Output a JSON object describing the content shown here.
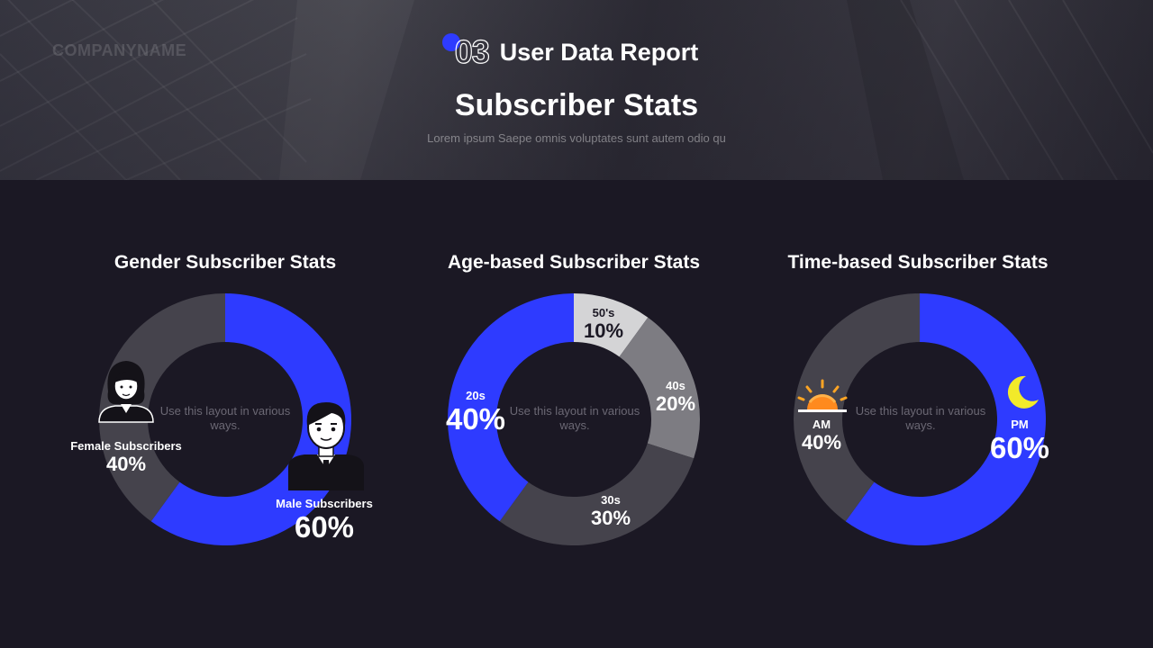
{
  "header": {
    "company": "COMPANYNAME",
    "section_number": "03",
    "section_title": "User Data Report",
    "title": "Subscriber Stats",
    "subtitle": "Lorem ipsum Saepe omnis voluptates sunt autem odio qu"
  },
  "colors": {
    "accent": "#2e3bff",
    "dark_segment": "#45434c",
    "mid_segment": "#7d7c82",
    "light_segment": "#d4d4d6",
    "background": "#1b1824"
  },
  "chart_data": [
    {
      "type": "pie",
      "title": "Gender Subscriber Stats",
      "center_note": "Use this layout in various ways.",
      "slices": [
        {
          "label": "Male Subscribers",
          "value": 60,
          "display": "60%",
          "color": "#2e3bff",
          "icon": "male-user-icon"
        },
        {
          "label": "Female Subscribers",
          "value": 40,
          "display": "40%",
          "color": "#45434c",
          "icon": "female-user-icon"
        }
      ]
    },
    {
      "type": "pie",
      "title": "Age-based Subscriber Stats",
      "center_note": "Use this layout in various ways.",
      "slices": [
        {
          "label": "50's",
          "value": 10,
          "display": "10%",
          "color": "#d4d4d6"
        },
        {
          "label": "40s",
          "value": 20,
          "display": "20%",
          "color": "#7d7c82"
        },
        {
          "label": "30s",
          "value": 30,
          "display": "30%",
          "color": "#45434c"
        },
        {
          "label": "20s",
          "value": 40,
          "display": "40%",
          "color": "#2e3bff"
        }
      ]
    },
    {
      "type": "pie",
      "title": "Time-based Subscriber Stats",
      "center_note": "Use this layout in various ways.",
      "slices": [
        {
          "label": "PM",
          "value": 60,
          "display": "60%",
          "color": "#2e3bff",
          "icon": "moon-icon"
        },
        {
          "label": "AM",
          "value": 40,
          "display": "40%",
          "color": "#45434c",
          "icon": "sunrise-icon"
        }
      ]
    }
  ]
}
